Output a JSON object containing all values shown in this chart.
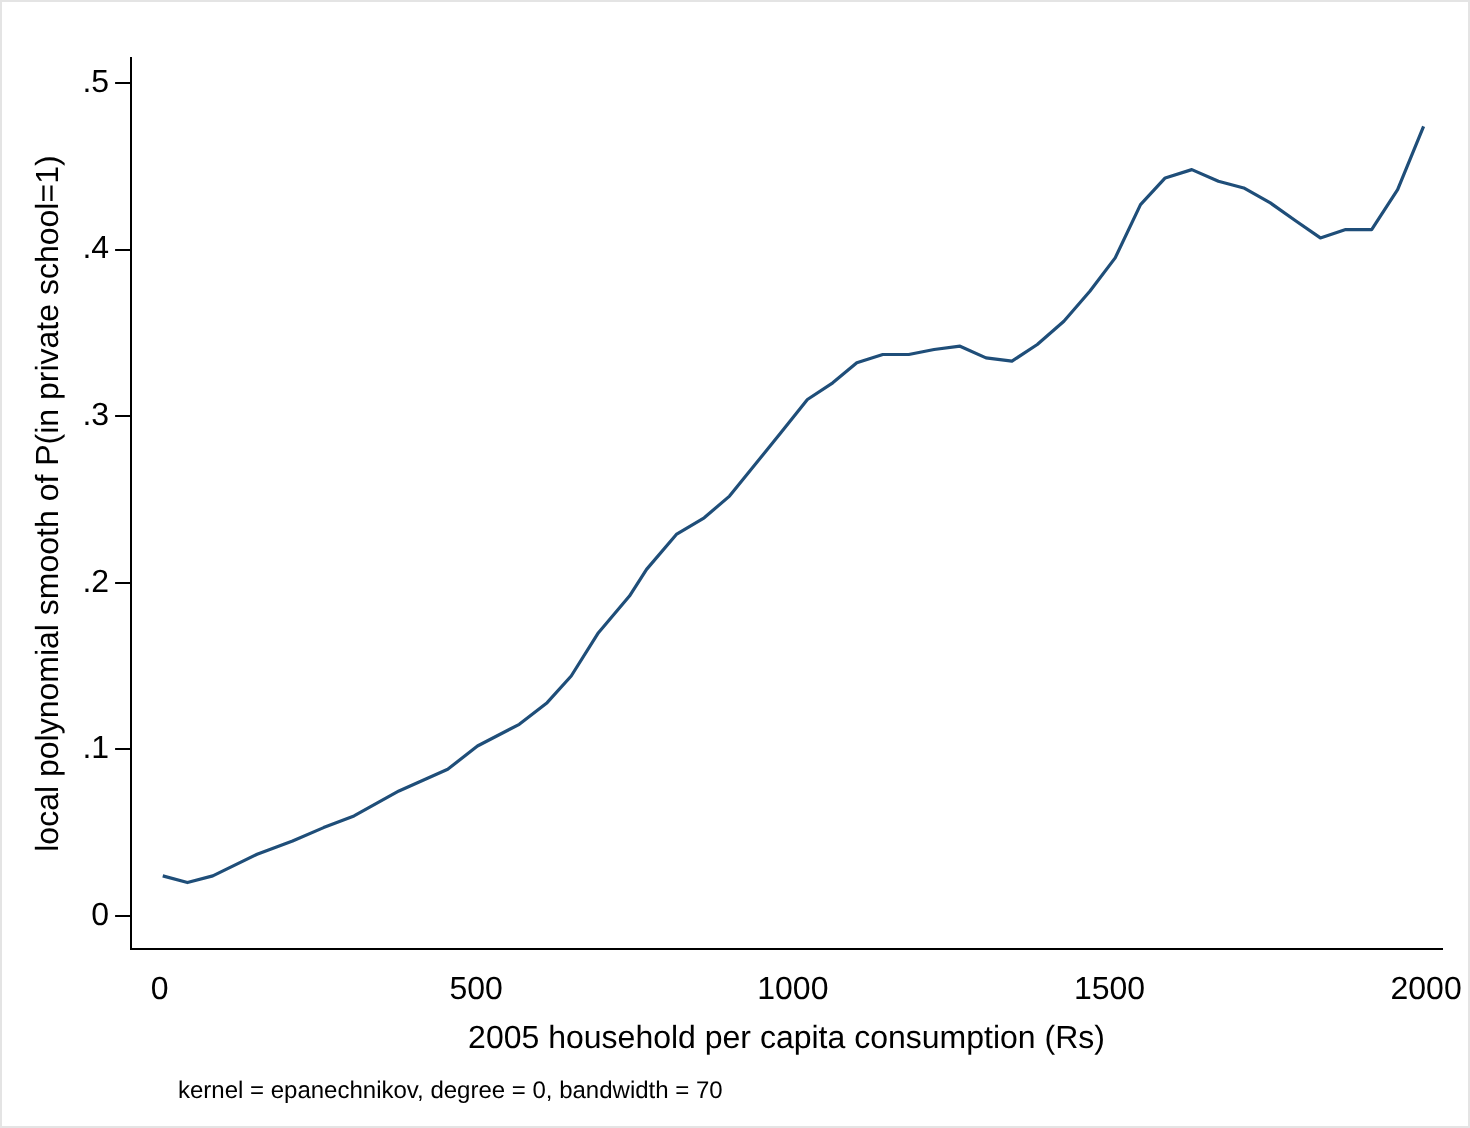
{
  "chart_data": {
    "type": "line",
    "xlabel": "2005 household per capita consumption (Rs)",
    "ylabel": "local polynomial smooth of P(in private school=1)",
    "annotations": [
      "kernel = epanechnikov, degree = 0, bandwidth = 70"
    ],
    "xlim": [
      -45,
      2025
    ],
    "xticks": [
      0,
      500,
      1000,
      1500,
      2000
    ],
    "ylim": [
      -0.02,
      0.515
    ],
    "yticks": [
      0,
      {
        "value": 0.1,
        "label": ".1"
      },
      {
        "value": 0.2,
        "label": ".2"
      },
      {
        "value": 0.3,
        "label": ".3"
      },
      {
        "value": 0.4,
        "label": ".4"
      },
      {
        "value": 0.5,
        "label": ".5"
      }
    ],
    "grid": false,
    "legend": false,
    "marker": "none",
    "line_style": "solid",
    "series": [
      {
        "color": "#1f4e79",
        "x": [
          5,
          44,
          84,
          154,
          210,
          259,
          307,
          378,
          455,
          502,
          568,
          612,
          650,
          693,
          742,
          769,
          816,
          860,
          900,
          981,
          1023,
          1063,
          1101,
          1142,
          1183,
          1223,
          1264,
          1305,
          1346,
          1386,
          1428,
          1469,
          1509,
          1549,
          1588,
          1630,
          1672,
          1712,
          1754,
          1795,
          1833,
          1873,
          1914,
          1955,
          1996
        ],
        "values": [
          0.024,
          0.02,
          0.024,
          0.037,
          0.045,
          0.053,
          0.06,
          0.075,
          0.088,
          0.102,
          0.115,
          0.128,
          0.144,
          0.17,
          0.192,
          0.208,
          0.229,
          0.239,
          0.252,
          0.29,
          0.31,
          0.32,
          0.332,
          0.337,
          0.337,
          0.34,
          0.342,
          0.335,
          0.333,
          0.343,
          0.357,
          0.375,
          0.395,
          0.427,
          0.443,
          0.448,
          0.441,
          0.437,
          0.428,
          0.417,
          0.407,
          0.412,
          0.412,
          0.436,
          0.474
        ]
      }
    ]
  }
}
